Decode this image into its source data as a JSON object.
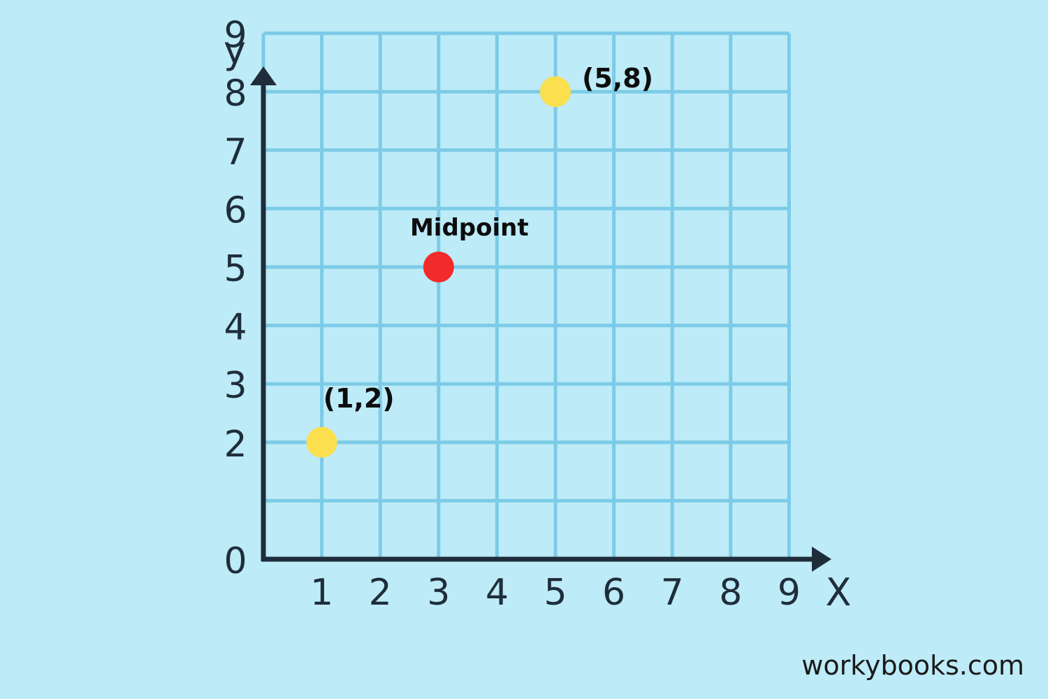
{
  "chart_data": {
    "type": "scatter",
    "title": "",
    "xlabel": "X",
    "ylabel": "y",
    "xlim": [
      0,
      9
    ],
    "ylim": [
      0,
      9
    ],
    "x_ticks": [
      "1",
      "2",
      "3",
      "4",
      "5",
      "6",
      "7",
      "8",
      "9"
    ],
    "y_ticks": [
      "0",
      "2",
      "3",
      "4",
      "5",
      "6",
      "7",
      "8",
      "9"
    ],
    "grid": true,
    "points": [
      {
        "x": 1,
        "y": 2,
        "label": "(1,2)",
        "color": "#fbdf4f"
      },
      {
        "x": 5,
        "y": 8,
        "label": "(5,8)",
        "color": "#fbdf4f"
      },
      {
        "x": 3,
        "y": 5,
        "label": "Midpoint",
        "color": "#f22a2a"
      }
    ]
  },
  "colors": {
    "background": "#bdebf7",
    "grid": "#7ccbe8",
    "axis": "#1f2d3a",
    "endpoint": "#fbdf4f",
    "midpoint": "#f22a2a"
  },
  "footer": {
    "watermark": "workybooks.com"
  }
}
